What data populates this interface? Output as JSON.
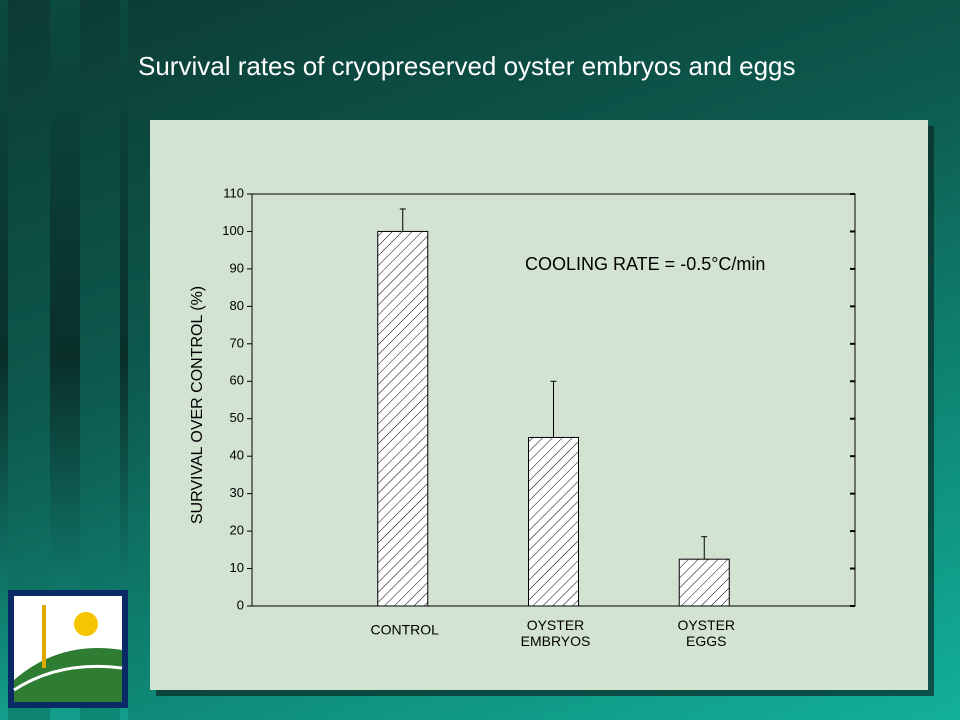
{
  "chart_data": {
    "type": "bar",
    "title": "Survival rates of cryopreserved oyster embryos and eggs",
    "y_label": "SURVIVAL OVER CONTROL (%)",
    "annotation": "COOLING RATE = -0.5°C/min",
    "categories": [
      "CONTROL",
      "OYSTER\nEMBRYOS",
      "OYSTER\nEGGS"
    ],
    "values": [
      100,
      45,
      12.5
    ],
    "errors": [
      6,
      15,
      6
    ],
    "ylim": [
      0,
      110
    ],
    "yticks": [
      0,
      10,
      20,
      30,
      40,
      50,
      60,
      70,
      80,
      90,
      100,
      110
    ],
    "color": "#ffffff",
    "hatch": true
  }
}
